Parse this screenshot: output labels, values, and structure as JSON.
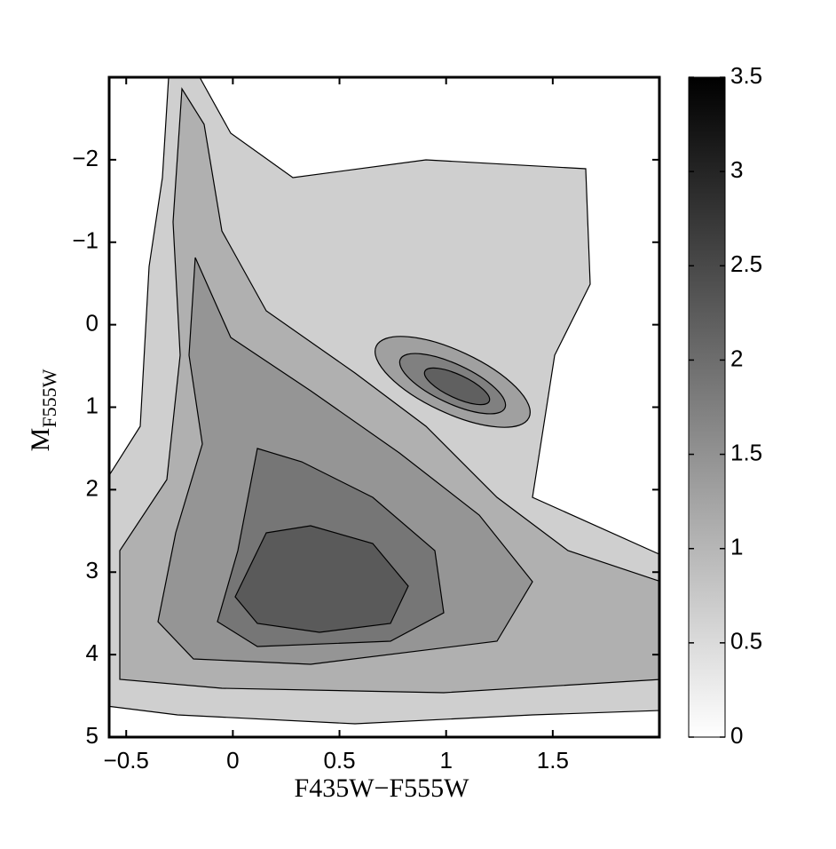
{
  "chart_data": {
    "type": "contour",
    "xlabel": "F435W−F555W",
    "ylabel": "M",
    "ylabel_sub": "F555W",
    "xlim": [
      -0.58,
      2.0
    ],
    "xticks": [
      {
        "value": -0.5,
        "label": "−0.5"
      },
      0,
      0.5,
      1,
      1.5
    ],
    "ylim": [
      -3,
      5
    ],
    "y_inverted": true,
    "yticks": [
      {
        "value": -2,
        "label": "−2"
      },
      {
        "value": -1,
        "label": "−1"
      },
      0,
      1,
      2,
      3,
      4,
      5
    ],
    "colorbar_lim": [
      0,
      3.5
    ],
    "colorbar_ticks": [
      0,
      0.5,
      1,
      1.5,
      2,
      2.5,
      3,
      3.5
    ],
    "colormap": [
      "#ffffff",
      "#000000"
    ]
  }
}
